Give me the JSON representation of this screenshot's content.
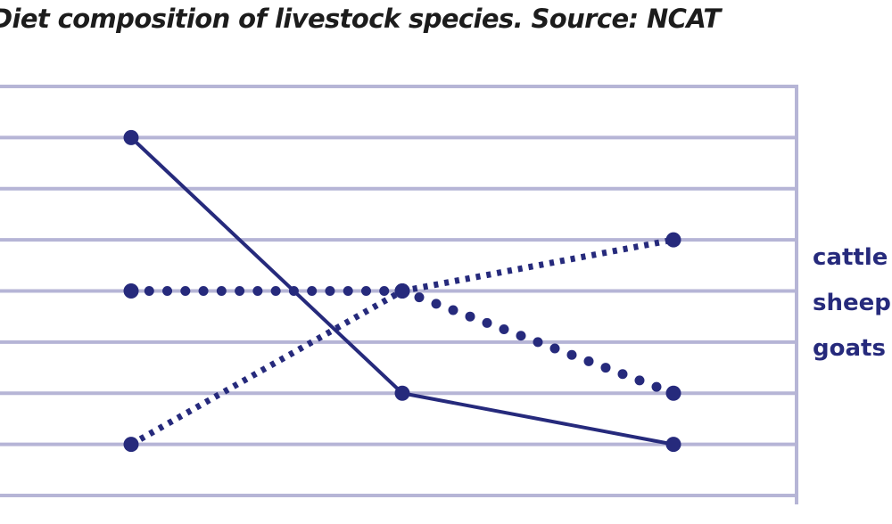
{
  "colors": {
    "grid": "#b6b5d6",
    "series": "#262a7c",
    "title": "#1c1c1c"
  },
  "chart_data": {
    "type": "line",
    "title": "Diet composition of livestock species. Source: NCAT",
    "xlabel": "",
    "ylabel": "",
    "x": [
      "",
      "",
      ""
    ],
    "ylim": [
      0,
      8
    ],
    "grid": true,
    "legend_position": "right",
    "series": [
      {
        "name": "cattle",
        "style": "solid",
        "values": [
          7,
          2,
          1
        ]
      },
      {
        "name": "sheep",
        "style": "dotted",
        "values": [
          4,
          4,
          2
        ]
      },
      {
        "name": "goats",
        "style": "dashed",
        "values": [
          1,
          4,
          5
        ]
      }
    ]
  }
}
